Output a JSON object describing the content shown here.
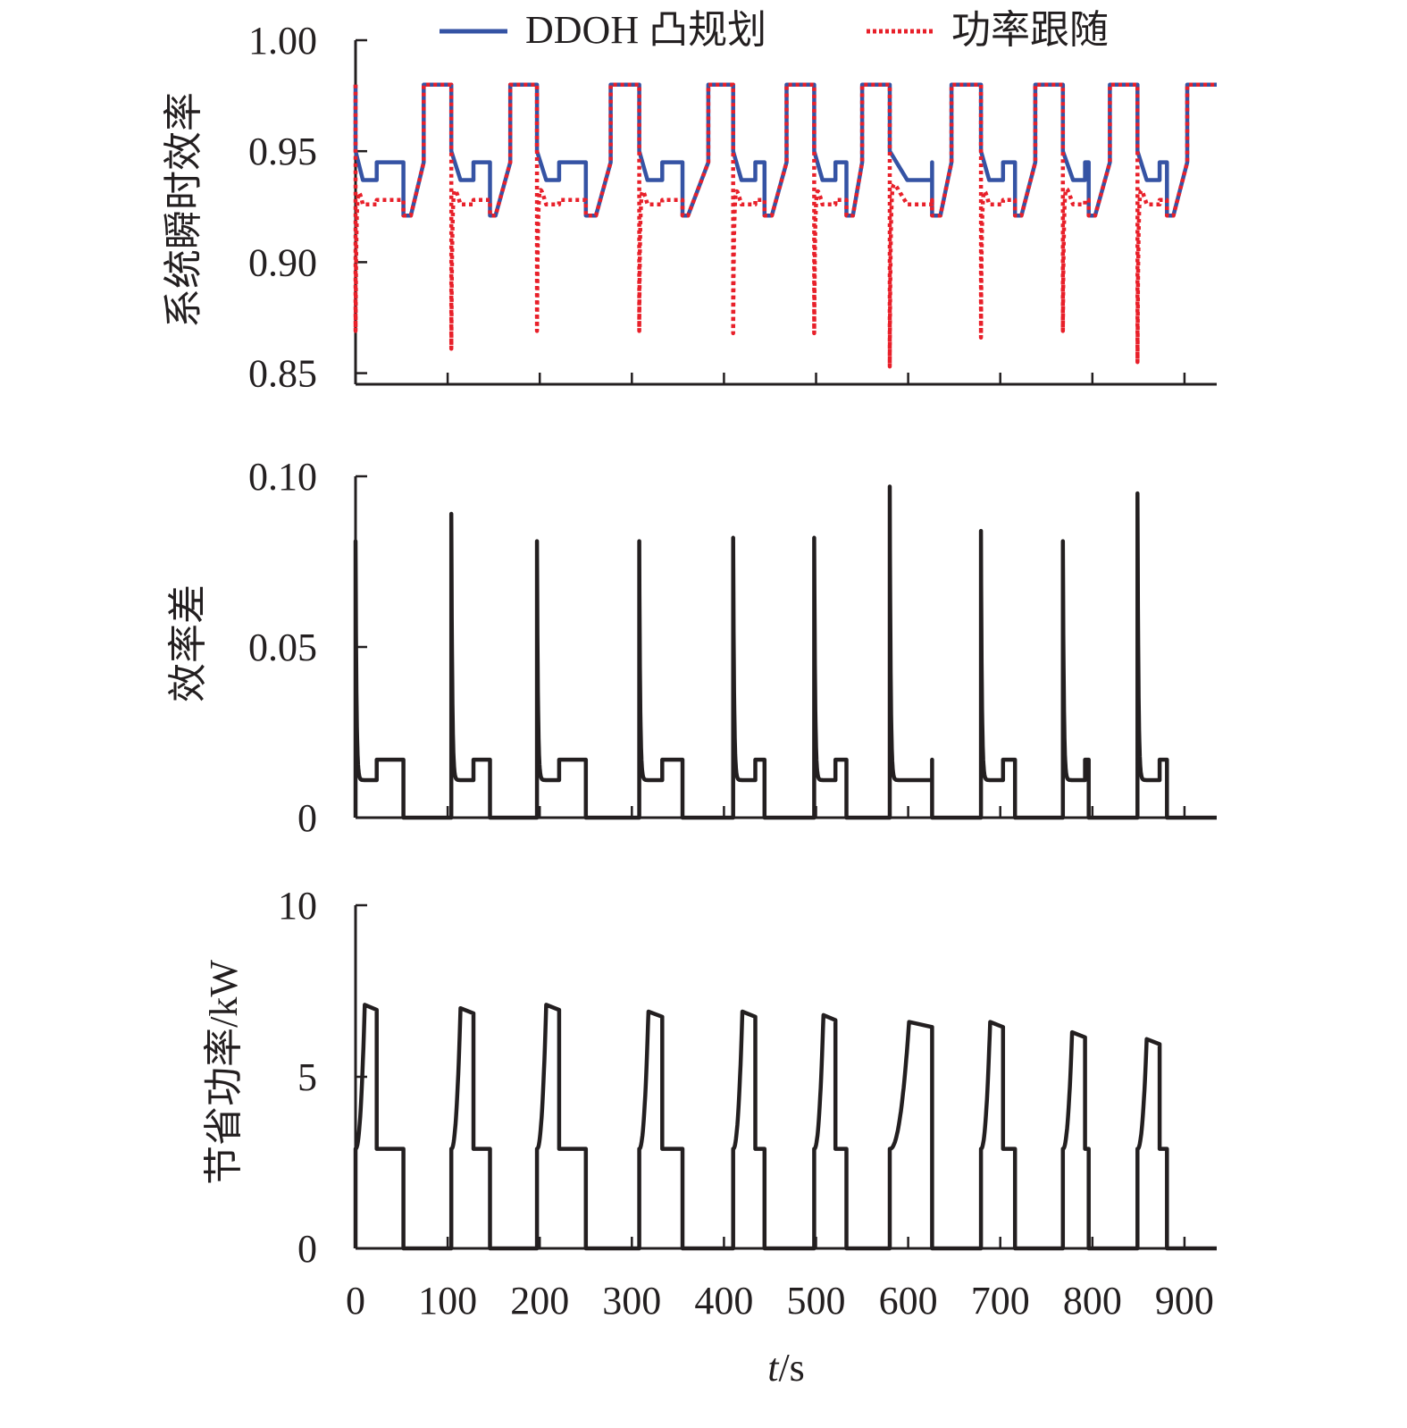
{
  "legend": [
    {
      "label": "DDOH 凸规划",
      "color": "#3553a4",
      "style": "solid"
    },
    {
      "label": "功率跟随",
      "color": "#e8202a",
      "style": "dotted"
    }
  ],
  "xaxis": {
    "label_italic": "t",
    "label_rest": "/s",
    "ticks": [
      0,
      100,
      200,
      300,
      400,
      500,
      600,
      700,
      800,
      900
    ],
    "tick_labels": [
      "0",
      "100",
      "200",
      "300",
      "400",
      "500",
      "600",
      "700",
      "800",
      "900"
    ],
    "range": [
      0,
      935
    ]
  },
  "chart_data": [
    {
      "type": "line",
      "ylabel": "系统瞬时效率",
      "ylim": [
        0.845,
        1.0
      ],
      "yticks": [
        0.85,
        0.9,
        0.95,
        1.0
      ],
      "ytick_labels": [
        "0.85",
        "0.90",
        "0.95",
        "1.00"
      ],
      "series": [
        {
          "name": "DDOH 凸规划",
          "color": "#3553a4"
        },
        {
          "name": "功率跟随",
          "color": "#e8202a"
        }
      ]
    },
    {
      "type": "line",
      "ylabel": "效率差",
      "ylim": [
        0,
        0.1
      ],
      "yticks": [
        0,
        0.05,
        0.1
      ],
      "ytick_labels": [
        "0",
        "0.05",
        "0.10"
      ],
      "series": [
        {
          "name": "效率差",
          "color": "#231f20"
        }
      ]
    },
    {
      "type": "line",
      "ylabel": "节省功率/kW",
      "ylim": [
        0,
        10
      ],
      "yticks": [
        0,
        5,
        10
      ],
      "ytick_labels": [
        "0",
        "5",
        "10"
      ],
      "series": [
        {
          "name": "节省功率",
          "color": "#231f20"
        }
      ]
    }
  ],
  "cycle_model": {
    "description_units": "time in s, efficiency fraction, power in kW",
    "blue_levels": {
      "high": 0.98,
      "start": 0.95,
      "step1": 0.937,
      "step2": 0.945,
      "low": 0.921
    },
    "diff_levels": {
      "step1": 0.011,
      "step2": 0.017
    },
    "saved_power_base": 2.9,
    "end_time": 935,
    "cycles": [
      {
        "t0": 0,
        "t1": 8,
        "t2": 23,
        "t3": 52,
        "tl": 60,
        "t4": 74,
        "spike": 0.081,
        "peak": 7.1,
        "rise": 10
      },
      {
        "t0": 104,
        "t1": 114,
        "t2": 128,
        "t3": 146,
        "tl": 152,
        "t4": 168,
        "spike": 0.089,
        "peak": 7.0,
        "rise": 10
      },
      {
        "t0": 197,
        "t1": 207,
        "t2": 221,
        "t3": 250,
        "tl": 261,
        "t4": 277,
        "spike": 0.081,
        "peak": 7.1,
        "rise": 10
      },
      {
        "t0": 308,
        "t1": 317,
        "t2": 333,
        "t3": 355,
        "tl": 361,
        "t4": 383,
        "spike": 0.081,
        "peak": 6.9,
        "rise": 10
      },
      {
        "t0": 410,
        "t1": 419,
        "t2": 434,
        "t3": 444,
        "tl": 452,
        "t4": 468,
        "spike": 0.082,
        "peak": 6.9,
        "rise": 10
      },
      {
        "t0": 498,
        "t1": 507,
        "t2": 521,
        "t3": 533,
        "tl": 540,
        "t4": 550,
        "spike": 0.082,
        "peak": 6.8,
        "rise": 10
      },
      {
        "t0": 580,
        "t1": 599,
        "t2": 626,
        "t3": 626,
        "tl": 635,
        "t4": 647,
        "spike": 0.097,
        "peak": 6.6,
        "rise": 21
      },
      {
        "t0": 679,
        "t1": 688,
        "t2": 703,
        "t3": 716,
        "tl": 723,
        "t4": 738,
        "spike": 0.084,
        "peak": 6.6,
        "rise": 10
      },
      {
        "t0": 768,
        "t1": 779,
        "t2": 792,
        "t3": 796,
        "tl": 803,
        "t4": 819,
        "spike": 0.081,
        "peak": 6.3,
        "rise": 10
      },
      {
        "t0": 849,
        "t1": 859,
        "t2": 873,
        "t3": 881,
        "tl": 888,
        "t4": 903,
        "spike": 0.095,
        "peak": 6.1,
        "rise": 10
      }
    ]
  }
}
